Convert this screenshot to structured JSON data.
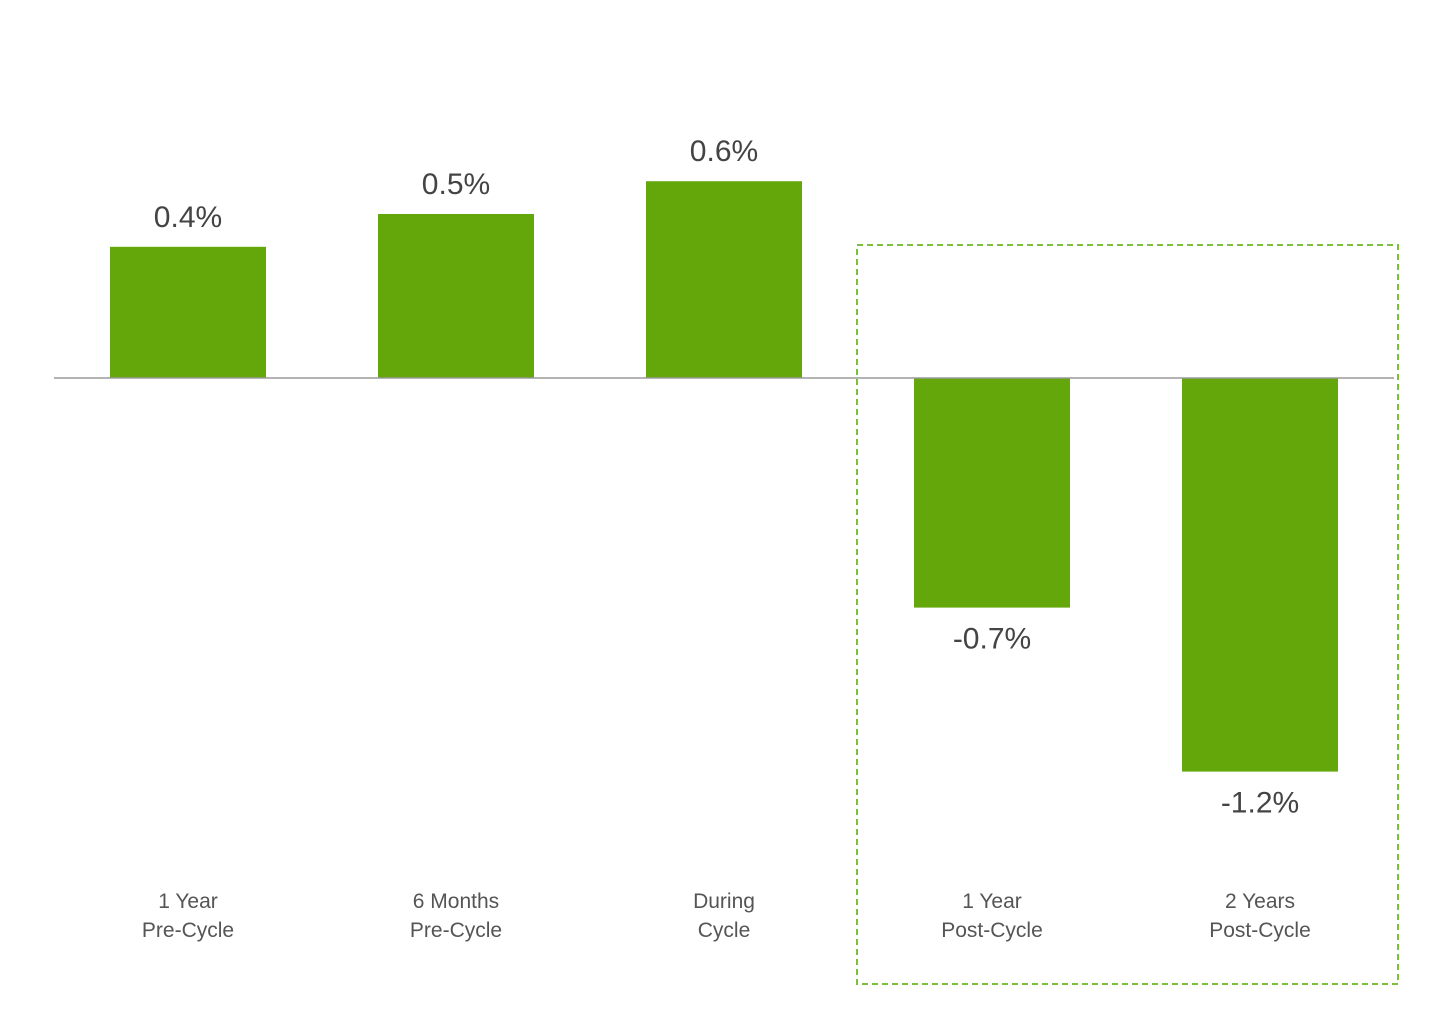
{
  "chart_data": {
    "type": "bar",
    "title": "",
    "xlabel": "",
    "ylabel": "",
    "categories": [
      [
        "1 Year",
        "Pre-Cycle"
      ],
      [
        "6 Months",
        "Pre-Cycle"
      ],
      [
        "During",
        "Cycle"
      ],
      [
        "1 Year",
        "Post-Cycle"
      ],
      [
        "2 Years",
        "Post-Cycle"
      ]
    ],
    "values": [
      0.4,
      0.5,
      0.6,
      -0.7,
      -1.2
    ],
    "value_labels": [
      "0.4%",
      "0.5%",
      "0.6%",
      "-0.7%",
      "-1.2%"
    ],
    "ylim": [
      -1.2,
      0.6
    ],
    "grid": false,
    "legend": "none",
    "highlighted_categories": [
      3,
      4
    ],
    "colors": {
      "bar": "#64a70b",
      "zero_line": "#9a9a9a",
      "highlight_border": "#7cbf3a"
    }
  }
}
